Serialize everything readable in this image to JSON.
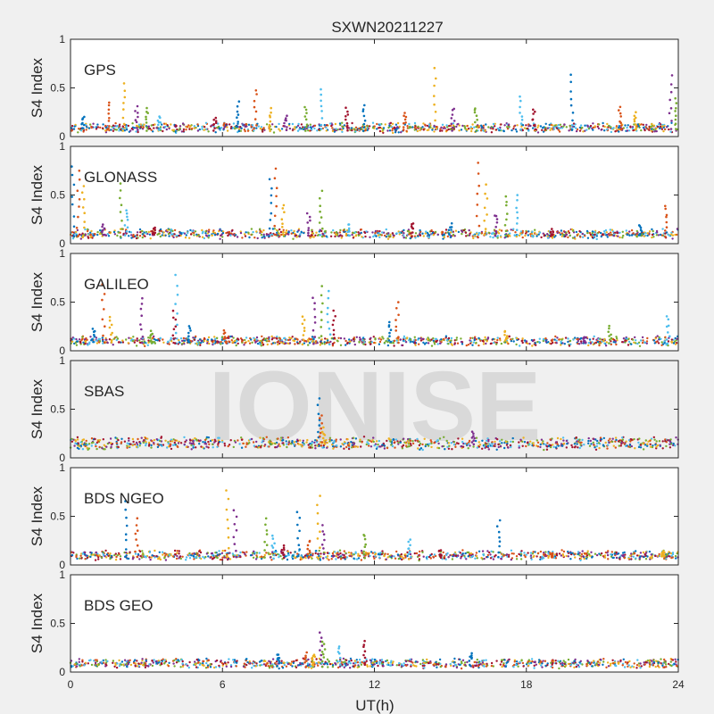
{
  "chart_data": {
    "type": "scatter",
    "title": "SXWN20211227",
    "xlabel": "UT(h)",
    "ylabel": "S4 Index",
    "xlim": [
      0,
      24
    ],
    "ylim": [
      0,
      1
    ],
    "x_ticks": [
      0,
      6,
      12,
      18,
      24
    ],
    "y_ticks": [
      0,
      0.5,
      1
    ],
    "y_tick_labels": [
      "0",
      "0.5",
      "1"
    ],
    "grid": false,
    "watermark": "IONISE",
    "series_colors": [
      "#0072BD",
      "#D95319",
      "#EDB120",
      "#7E2F8E",
      "#77AC30",
      "#4DBEEE",
      "#A2142F"
    ],
    "panels": [
      {
        "name": "GPS",
        "baseline": 0.07,
        "background": "#ffffff",
        "spikes": [
          {
            "x": 0.5,
            "y": 0.2
          },
          {
            "x": 1.5,
            "y": 0.35
          },
          {
            "x": 2.1,
            "y": 0.55
          },
          {
            "x": 2.6,
            "y": 0.3
          },
          {
            "x": 3.0,
            "y": 0.3
          },
          {
            "x": 3.5,
            "y": 0.22
          },
          {
            "x": 5.7,
            "y": 0.2
          },
          {
            "x": 6.6,
            "y": 0.35
          },
          {
            "x": 7.3,
            "y": 0.48
          },
          {
            "x": 7.9,
            "y": 0.28
          },
          {
            "x": 8.5,
            "y": 0.22
          },
          {
            "x": 9.3,
            "y": 0.3
          },
          {
            "x": 9.9,
            "y": 0.5
          },
          {
            "x": 10.9,
            "y": 0.3
          },
          {
            "x": 11.6,
            "y": 0.32
          },
          {
            "x": 13.2,
            "y": 0.25
          },
          {
            "x": 14.4,
            "y": 0.7
          },
          {
            "x": 15.1,
            "y": 0.3
          },
          {
            "x": 16.0,
            "y": 0.3
          },
          {
            "x": 17.8,
            "y": 0.4
          },
          {
            "x": 18.3,
            "y": 0.28
          },
          {
            "x": 19.8,
            "y": 0.64
          },
          {
            "x": 21.7,
            "y": 0.3
          },
          {
            "x": 22.3,
            "y": 0.25
          },
          {
            "x": 23.7,
            "y": 0.62
          },
          {
            "x": 23.9,
            "y": 0.4
          }
        ]
      },
      {
        "name": "GLONASS",
        "baseline": 0.08,
        "background": "#ffffff",
        "spikes": [
          {
            "x": 0.1,
            "y": 0.8
          },
          {
            "x": 0.3,
            "y": 0.75
          },
          {
            "x": 0.5,
            "y": 0.6
          },
          {
            "x": 1.3,
            "y": 0.2
          },
          {
            "x": 2.0,
            "y": 0.62
          },
          {
            "x": 2.2,
            "y": 0.35
          },
          {
            "x": 3.3,
            "y": 0.15
          },
          {
            "x": 7.9,
            "y": 0.65
          },
          {
            "x": 8.1,
            "y": 0.78
          },
          {
            "x": 8.4,
            "y": 0.4
          },
          {
            "x": 9.4,
            "y": 0.3
          },
          {
            "x": 9.9,
            "y": 0.53
          },
          {
            "x": 11.0,
            "y": 0.2
          },
          {
            "x": 13.5,
            "y": 0.22
          },
          {
            "x": 15.0,
            "y": 0.2
          },
          {
            "x": 16.1,
            "y": 0.82
          },
          {
            "x": 16.4,
            "y": 0.6
          },
          {
            "x": 16.8,
            "y": 0.3
          },
          {
            "x": 17.2,
            "y": 0.5
          },
          {
            "x": 17.6,
            "y": 0.5
          },
          {
            "x": 19.0,
            "y": 0.15
          },
          {
            "x": 22.5,
            "y": 0.2
          },
          {
            "x": 23.5,
            "y": 0.4
          }
        ]
      },
      {
        "name": "GALILEO",
        "baseline": 0.08,
        "background": "#ffffff",
        "spikes": [
          {
            "x": 0.9,
            "y": 0.22
          },
          {
            "x": 1.3,
            "y": 0.68
          },
          {
            "x": 1.6,
            "y": 0.35
          },
          {
            "x": 2.8,
            "y": 0.55
          },
          {
            "x": 3.2,
            "y": 0.2
          },
          {
            "x": 4.2,
            "y": 0.77
          },
          {
            "x": 4.1,
            "y": 0.4
          },
          {
            "x": 4.7,
            "y": 0.25
          },
          {
            "x": 6.1,
            "y": 0.2
          },
          {
            "x": 9.2,
            "y": 0.35
          },
          {
            "x": 9.6,
            "y": 0.55
          },
          {
            "x": 9.9,
            "y": 0.65
          },
          {
            "x": 10.2,
            "y": 0.6
          },
          {
            "x": 10.4,
            "y": 0.4
          },
          {
            "x": 12.6,
            "y": 0.3
          },
          {
            "x": 12.9,
            "y": 0.5
          },
          {
            "x": 17.2,
            "y": 0.2
          },
          {
            "x": 20.3,
            "y": 0.15
          },
          {
            "x": 21.3,
            "y": 0.25
          },
          {
            "x": 23.6,
            "y": 0.35
          }
        ]
      },
      {
        "name": "SBAS",
        "baseline": 0.13,
        "background": "#f0f0f0",
        "spikes": [
          {
            "x": 9.8,
            "y": 0.6
          },
          {
            "x": 9.9,
            "y": 0.45
          },
          {
            "x": 10.0,
            "y": 0.3
          },
          {
            "x": 15.9,
            "y": 0.28
          }
        ]
      },
      {
        "name": "BDS NGEO",
        "baseline": 0.08,
        "background": "#ffffff",
        "spikes": [
          {
            "x": 2.2,
            "y": 0.65
          },
          {
            "x": 2.6,
            "y": 0.48
          },
          {
            "x": 6.2,
            "y": 0.78
          },
          {
            "x": 6.5,
            "y": 0.55
          },
          {
            "x": 7.7,
            "y": 0.48
          },
          {
            "x": 8.0,
            "y": 0.3
          },
          {
            "x": 8.4,
            "y": 0.2
          },
          {
            "x": 9.0,
            "y": 0.55
          },
          {
            "x": 9.4,
            "y": 0.25
          },
          {
            "x": 9.8,
            "y": 0.7
          },
          {
            "x": 10.0,
            "y": 0.4
          },
          {
            "x": 11.6,
            "y": 0.32
          },
          {
            "x": 13.4,
            "y": 0.25
          },
          {
            "x": 14.6,
            "y": 0.15
          },
          {
            "x": 16.9,
            "y": 0.45
          },
          {
            "x": 19.0,
            "y": 0.12
          },
          {
            "x": 23.4,
            "y": 0.15
          }
        ]
      },
      {
        "name": "BDS GEO",
        "baseline": 0.07,
        "background": "#ffffff",
        "spikes": [
          {
            "x": 8.2,
            "y": 0.18
          },
          {
            "x": 9.3,
            "y": 0.2
          },
          {
            "x": 9.6,
            "y": 0.18
          },
          {
            "x": 9.9,
            "y": 0.4
          },
          {
            "x": 10.0,
            "y": 0.32
          },
          {
            "x": 10.6,
            "y": 0.26
          },
          {
            "x": 11.6,
            "y": 0.32
          },
          {
            "x": 15.8,
            "y": 0.2
          }
        ]
      }
    ]
  }
}
